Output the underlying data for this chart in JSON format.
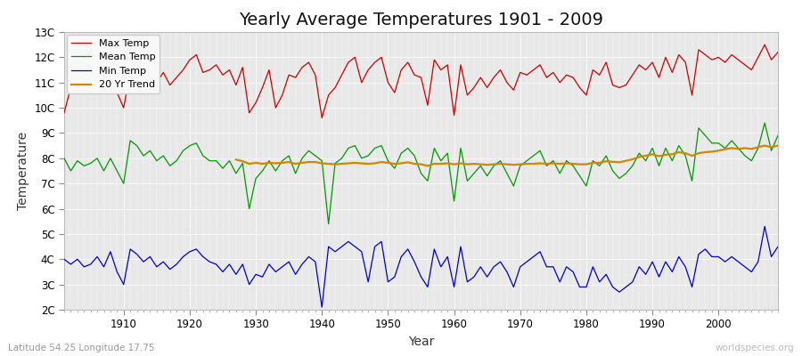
{
  "title": "Yearly Average Temperatures 1901 - 2009",
  "xlabel": "Year",
  "ylabel": "Temperature",
  "lat_lon_label": "Latitude 54.25 Longitude 17.75",
  "watermark": "worldspecies.org",
  "years": [
    1901,
    1902,
    1903,
    1904,
    1905,
    1906,
    1907,
    1908,
    1909,
    1910,
    1911,
    1912,
    1913,
    1914,
    1915,
    1916,
    1917,
    1918,
    1919,
    1920,
    1921,
    1922,
    1923,
    1924,
    1925,
    1926,
    1927,
    1928,
    1929,
    1930,
    1931,
    1932,
    1933,
    1934,
    1935,
    1936,
    1937,
    1938,
    1939,
    1940,
    1941,
    1942,
    1943,
    1944,
    1945,
    1946,
    1947,
    1948,
    1949,
    1950,
    1951,
    1952,
    1953,
    1954,
    1955,
    1956,
    1957,
    1958,
    1959,
    1960,
    1961,
    1962,
    1963,
    1964,
    1965,
    1966,
    1967,
    1968,
    1969,
    1970,
    1971,
    1972,
    1973,
    1974,
    1975,
    1976,
    1977,
    1978,
    1979,
    1980,
    1981,
    1982,
    1983,
    1984,
    1985,
    1986,
    1987,
    1988,
    1989,
    1990,
    1991,
    1992,
    1993,
    1994,
    1995,
    1996,
    1997,
    1998,
    1999,
    2000,
    2001,
    2002,
    2003,
    2004,
    2005,
    2006,
    2007,
    2008,
    2009
  ],
  "max_temp": [
    9.8,
    10.8,
    11.2,
    11.0,
    10.7,
    11.3,
    11.0,
    11.4,
    10.6,
    10.0,
    11.4,
    11.0,
    11.2,
    11.2,
    11.0,
    11.4,
    10.9,
    11.2,
    11.5,
    11.9,
    12.1,
    11.4,
    11.5,
    11.7,
    11.3,
    11.5,
    10.9,
    11.6,
    9.8,
    10.2,
    10.8,
    11.5,
    10.0,
    10.5,
    11.3,
    11.2,
    11.6,
    11.8,
    11.3,
    9.6,
    10.5,
    10.8,
    11.3,
    11.8,
    12.0,
    11.0,
    11.5,
    11.8,
    12.0,
    11.0,
    10.6,
    11.5,
    11.8,
    11.3,
    11.2,
    10.1,
    11.9,
    11.5,
    11.7,
    9.7,
    11.7,
    10.5,
    10.8,
    11.2,
    10.8,
    11.2,
    11.5,
    11.0,
    10.7,
    11.4,
    11.3,
    11.5,
    11.7,
    11.2,
    11.4,
    11.0,
    11.3,
    11.2,
    10.8,
    10.5,
    11.5,
    11.3,
    11.8,
    10.9,
    10.8,
    10.9,
    11.3,
    11.7,
    11.5,
    11.8,
    11.2,
    12.0,
    11.4,
    12.1,
    11.8,
    10.5,
    12.3,
    12.1,
    11.9,
    12.0,
    11.8,
    12.1,
    11.9,
    11.7,
    11.5,
    12.0,
    12.5,
    11.9,
    12.2
  ],
  "mean_temp": [
    8.0,
    7.5,
    7.9,
    7.7,
    7.8,
    8.0,
    7.5,
    8.0,
    7.5,
    7.0,
    8.7,
    8.5,
    8.1,
    8.3,
    7.9,
    8.1,
    7.7,
    7.9,
    8.3,
    8.5,
    8.6,
    8.1,
    7.9,
    7.9,
    7.6,
    7.9,
    7.4,
    7.8,
    6.0,
    7.2,
    7.5,
    7.9,
    7.5,
    7.9,
    8.1,
    7.4,
    8.0,
    8.3,
    8.1,
    7.9,
    5.4,
    7.8,
    8.0,
    8.4,
    8.5,
    8.0,
    8.1,
    8.4,
    8.5,
    7.9,
    7.6,
    8.2,
    8.4,
    8.1,
    7.4,
    7.1,
    8.4,
    7.9,
    8.2,
    6.3,
    8.4,
    7.1,
    7.4,
    7.7,
    7.3,
    7.7,
    7.9,
    7.4,
    6.9,
    7.7,
    7.9,
    8.1,
    8.3,
    7.7,
    7.9,
    7.4,
    7.9,
    7.7,
    7.3,
    6.9,
    7.9,
    7.7,
    8.1,
    7.5,
    7.2,
    7.4,
    7.7,
    8.2,
    7.9,
    8.4,
    7.7,
    8.4,
    7.9,
    8.5,
    8.1,
    7.1,
    9.2,
    8.9,
    8.6,
    8.6,
    8.4,
    8.7,
    8.4,
    8.1,
    7.9,
    8.4,
    9.4,
    8.3,
    8.9
  ],
  "min_temp": [
    4.0,
    3.8,
    4.0,
    3.7,
    3.8,
    4.1,
    3.7,
    4.3,
    3.5,
    3.0,
    4.4,
    4.2,
    3.9,
    4.1,
    3.7,
    3.9,
    3.6,
    3.8,
    4.1,
    4.3,
    4.4,
    4.1,
    3.9,
    3.8,
    3.5,
    3.8,
    3.4,
    3.8,
    3.0,
    3.4,
    3.3,
    3.8,
    3.5,
    3.7,
    3.9,
    3.4,
    3.8,
    4.1,
    3.9,
    2.1,
    4.5,
    4.3,
    4.5,
    4.7,
    4.5,
    4.3,
    3.1,
    4.5,
    4.7,
    3.1,
    3.3,
    4.1,
    4.4,
    3.9,
    3.3,
    2.9,
    4.4,
    3.7,
    4.1,
    2.9,
    4.5,
    3.1,
    3.3,
    3.7,
    3.3,
    3.7,
    3.9,
    3.5,
    2.9,
    3.7,
    3.9,
    4.1,
    4.3,
    3.7,
    3.7,
    3.1,
    3.7,
    3.5,
    2.9,
    2.9,
    3.7,
    3.1,
    3.4,
    2.9,
    2.7,
    2.9,
    3.1,
    3.7,
    3.4,
    3.9,
    3.3,
    3.9,
    3.5,
    4.1,
    3.7,
    2.9,
    4.2,
    4.4,
    4.1,
    4.1,
    3.9,
    4.1,
    3.9,
    3.7,
    3.5,
    3.9,
    5.3,
    4.1,
    4.5
  ],
  "trend_years": [
    1927,
    1928,
    1929,
    1930,
    1931,
    1932,
    1933,
    1934,
    1935,
    1936,
    1937,
    1938,
    1939,
    1940,
    1941,
    1942,
    1943,
    1944,
    1945,
    1946,
    1947,
    1948,
    1949,
    1950,
    1951,
    1952,
    1953,
    1954,
    1955,
    1956,
    1957,
    1958,
    1959,
    1960,
    1961,
    1962,
    1963,
    1964,
    1965,
    1966,
    1967,
    1968,
    1969,
    1970,
    1971,
    1972,
    1973,
    1974,
    1975,
    1976,
    1977,
    1978,
    1979,
    1980,
    1981,
    1982,
    1983,
    1984,
    1985,
    1986,
    1987,
    1988,
    1989,
    1990,
    1991,
    1992,
    1993,
    1994,
    1995,
    1996,
    1997,
    1998,
    1999,
    2000,
    2001,
    2002,
    2003,
    2004,
    2005,
    2006,
    2007,
    2008,
    2009
  ],
  "trend_vals": [
    7.95,
    7.88,
    7.78,
    7.82,
    7.78,
    7.82,
    7.8,
    7.82,
    7.85,
    7.78,
    7.82,
    7.85,
    7.85,
    7.8,
    7.78,
    7.76,
    7.78,
    7.8,
    7.82,
    7.8,
    7.78,
    7.8,
    7.85,
    7.82,
    7.78,
    7.8,
    7.84,
    7.78,
    7.76,
    7.7,
    7.78,
    7.78,
    7.8,
    7.76,
    7.8,
    7.76,
    7.78,
    7.76,
    7.74,
    7.76,
    7.78,
    7.76,
    7.74,
    7.76,
    7.78,
    7.78,
    7.8,
    7.78,
    7.8,
    7.78,
    7.8,
    7.78,
    7.76,
    7.76,
    7.82,
    7.82,
    7.88,
    7.86,
    7.84,
    7.9,
    7.96,
    8.05,
    8.1,
    8.16,
    8.08,
    8.14,
    8.16,
    8.24,
    8.2,
    8.1,
    8.2,
    8.24,
    8.26,
    8.3,
    8.36,
    8.4,
    8.37,
    8.4,
    8.37,
    8.44,
    8.5,
    8.44,
    8.5
  ],
  "max_color": "#cc0000",
  "mean_color": "#009900",
  "min_color": "#0000cc",
  "trend_color": "#cc8800",
  "fig_bg": "#ffffff",
  "plot_bg": "#e8e8e8",
  "grid_color": "#ffffff",
  "ylim": [
    2,
    13
  ],
  "yticks": [
    2,
    3,
    4,
    5,
    6,
    7,
    8,
    9,
    10,
    11,
    12,
    13
  ],
  "ytick_labels": [
    "2C",
    "3C",
    "4C",
    "5C",
    "6C",
    "7C",
    "8C",
    "9C",
    "10C",
    "11C",
    "12C",
    "13C"
  ],
  "xlim_left": 1901,
  "xlim_right": 2009,
  "title_fontsize": 14,
  "axis_label_fontsize": 10,
  "tick_fontsize": 8.5,
  "legend_fontsize": 8,
  "lw_main": 0.9,
  "lw_trend": 1.6
}
